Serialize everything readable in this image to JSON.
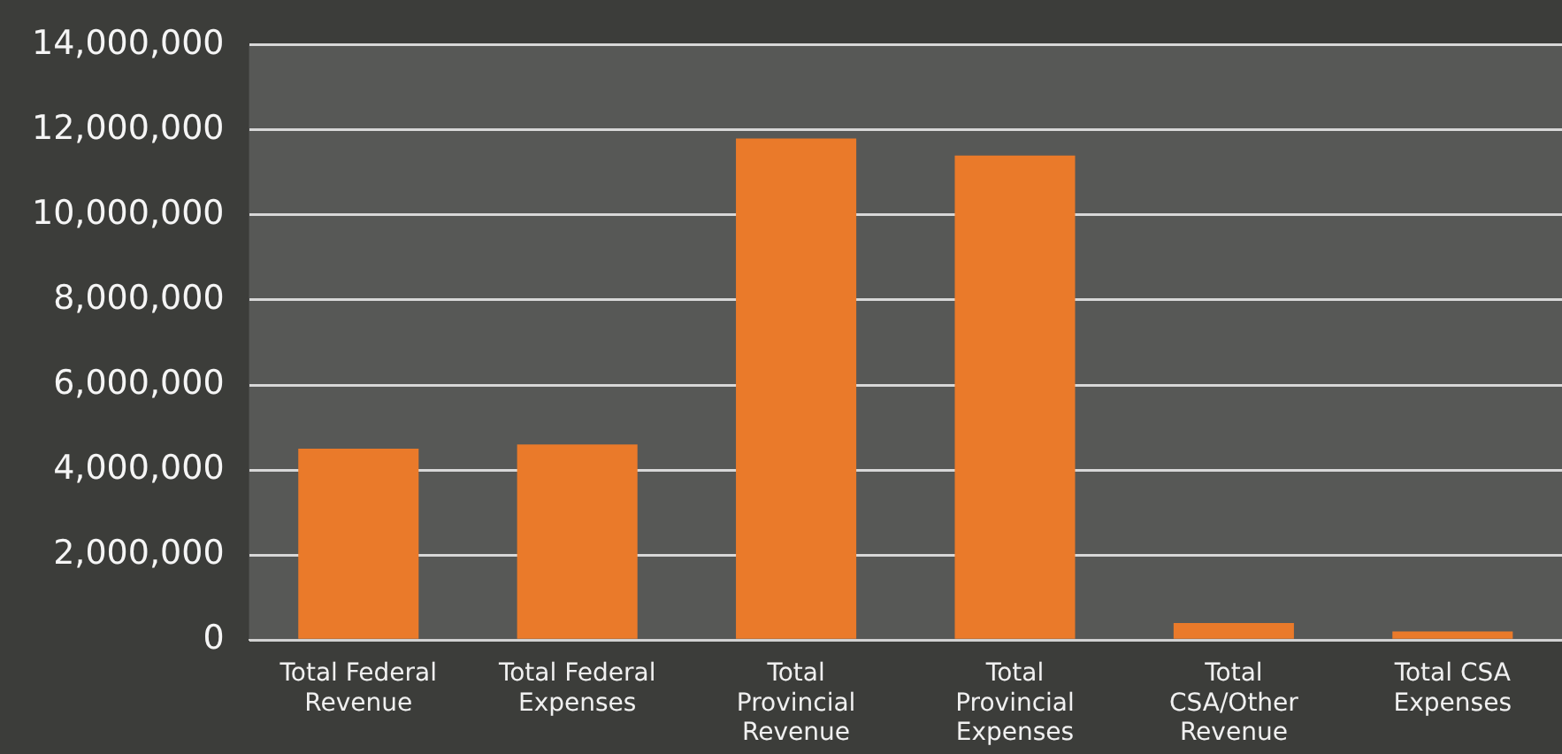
{
  "chart_data": {
    "type": "bar",
    "categories": [
      "Total Federal Revenue",
      "Total Federal Expenses",
      "Total Provincial Revenue",
      "Total Provincial Expenses",
      "Total CSA/Other Revenue",
      "Total CSA Expenses"
    ],
    "values": [
      4500000,
      4600000,
      11800000,
      11400000,
      400000,
      200000
    ],
    "color": "#ea7a2a",
    "ylim": [
      0,
      14000000
    ],
    "yticks": [
      {
        "value": 0,
        "label": "0"
      },
      {
        "value": 2000000,
        "label": "2,000,000"
      },
      {
        "value": 4000000,
        "label": "4,000,000"
      },
      {
        "value": 6000000,
        "label": "6,000,000"
      },
      {
        "value": 8000000,
        "label": "8,000,000"
      },
      {
        "value": 10000000,
        "label": "10,000,000"
      },
      {
        "value": 12000000,
        "label": "12,000,000"
      },
      {
        "value": 14000000,
        "label": "14,000,000"
      }
    ],
    "grid": "y",
    "legend": false
  }
}
